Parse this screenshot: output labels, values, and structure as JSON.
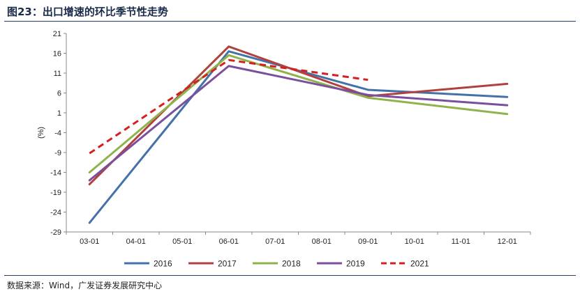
{
  "header": {
    "title": "图23：出口增速的环比季节性走势"
  },
  "footer": {
    "source": "数据来源：Wind，广发证券发展研究中心"
  },
  "colors": {
    "2016": "#4472a8",
    "2017": "#b0413e",
    "2018": "#8fb34a",
    "2019": "#7b4f9d",
    "2021": "#d62020",
    "axis": "#888888",
    "text": "#222222"
  },
  "chart_data": {
    "type": "line",
    "title": "",
    "xlabel": "",
    "ylabel": "(%)",
    "categories": [
      "03-01",
      "04-01",
      "05-01",
      "06-01",
      "07-01",
      "08-01",
      "09-01",
      "10-01",
      "11-01",
      "12-01"
    ],
    "yticks": [
      21,
      16,
      11,
      6,
      1,
      -4,
      -9,
      -14,
      -19,
      -24,
      -29
    ],
    "ylim": [
      -29,
      21
    ],
    "grid": false,
    "legend_position": "bottom",
    "series": [
      {
        "name": "2016",
        "style": "solid",
        "points": [
          [
            0,
            -26.7
          ],
          [
            3,
            16.5
          ],
          [
            6,
            6.8
          ],
          [
            9,
            5.0
          ]
        ]
      },
      {
        "name": "2017",
        "style": "solid",
        "points": [
          [
            0,
            -17.0
          ],
          [
            3,
            17.7
          ],
          [
            6,
            5.2
          ],
          [
            9,
            8.3
          ]
        ]
      },
      {
        "name": "2018",
        "style": "solid",
        "points": [
          [
            0,
            -14.0
          ],
          [
            3,
            15.5
          ],
          [
            6,
            4.8
          ],
          [
            9,
            0.7
          ]
        ]
      },
      {
        "name": "2019",
        "style": "solid",
        "points": [
          [
            0,
            -16.0
          ],
          [
            3,
            12.8
          ],
          [
            6,
            5.5
          ],
          [
            9,
            2.9
          ]
        ]
      },
      {
        "name": "2021",
        "style": "dashed",
        "points": [
          [
            0,
            -9.2
          ],
          [
            3,
            14.3
          ],
          [
            6,
            9.3
          ]
        ]
      }
    ]
  }
}
